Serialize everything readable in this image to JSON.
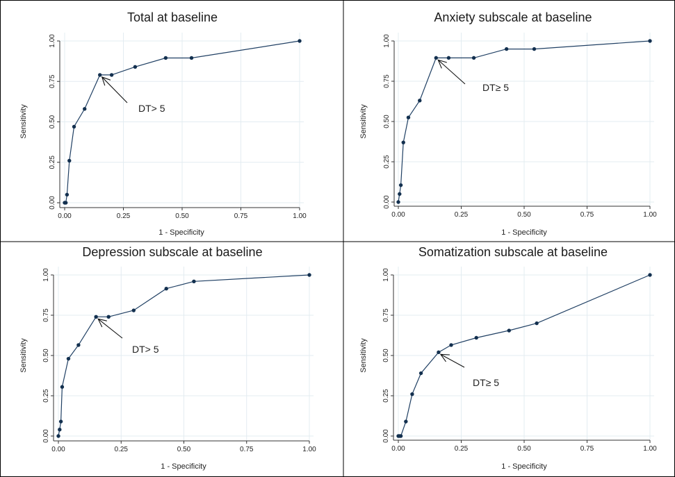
{
  "chart_data": [
    {
      "type": "line",
      "title": "Total at baseline",
      "xlabel": "1 - Specificity",
      "ylabel": "Sensitivity",
      "xlim": [
        0,
        1
      ],
      "ylim": [
        0,
        1
      ],
      "x_ticks": [
        "0.00",
        "0.25",
        "0.50",
        "0.75",
        "1.00"
      ],
      "y_ticks": [
        "0.00",
        "0.25",
        "0.50",
        "0.75",
        "1.00"
      ],
      "grid": true,
      "annotation": {
        "text": "DT> 5",
        "x": 0.15,
        "y": 0.79
      },
      "series": [
        {
          "x": [
            0.0,
            0.005,
            0.01,
            0.02,
            0.04,
            0.085,
            0.15,
            0.2,
            0.3,
            0.43,
            0.54,
            1.0
          ],
          "y": [
            0.0,
            0.0,
            0.05,
            0.26,
            0.47,
            0.58,
            0.79,
            0.79,
            0.84,
            0.895,
            0.895,
            1.0
          ]
        }
      ]
    },
    {
      "type": "line",
      "title": "Anxiety subscale at baseline",
      "xlabel": "1 - Specificity",
      "ylabel": "Sensitivity",
      "xlim": [
        0,
        1
      ],
      "ylim": [
        0,
        1
      ],
      "x_ticks": [
        "0.00",
        "0.25",
        "0.50",
        "0.75",
        "1.00"
      ],
      "y_ticks": [
        "0.00",
        "0.25",
        "0.50",
        "0.75",
        "1.00"
      ],
      "grid": true,
      "annotation": {
        "text": "DT≥ 5",
        "x": 0.15,
        "y": 0.895
      },
      "series": [
        {
          "x": [
            0.0,
            0.005,
            0.01,
            0.02,
            0.04,
            0.085,
            0.15,
            0.2,
            0.3,
            0.43,
            0.54,
            1.0
          ],
          "y": [
            0.0,
            0.05,
            0.105,
            0.37,
            0.525,
            0.63,
            0.895,
            0.895,
            0.895,
            0.95,
            0.95,
            1.0
          ]
        }
      ]
    },
    {
      "type": "line",
      "title": "Depression subscale at baseline",
      "xlabel": "1 - Specificity",
      "ylabel": "Sensitivity",
      "xlim": [
        0,
        1
      ],
      "ylim": [
        0,
        1
      ],
      "x_ticks": [
        "0.00",
        "0.25",
        "0.50",
        "0.75",
        "1.00"
      ],
      "y_ticks": [
        "0.00",
        "0.25",
        "0.50",
        "0.75",
        "1.00"
      ],
      "grid": true,
      "annotation": {
        "text": "DT> 5",
        "x": 0.15,
        "y": 0.74
      },
      "series": [
        {
          "x": [
            0.0,
            0.005,
            0.01,
            0.015,
            0.04,
            0.08,
            0.15,
            0.2,
            0.3,
            0.43,
            0.54,
            1.0
          ],
          "y": [
            0.0,
            0.04,
            0.09,
            0.305,
            0.48,
            0.565,
            0.74,
            0.74,
            0.78,
            0.915,
            0.96,
            1.0
          ]
        }
      ]
    },
    {
      "type": "line",
      "title": "Somatization subscale at baseline",
      "xlabel": "1 - Specificity",
      "ylabel": "Sensitivity",
      "xlim": [
        0,
        1
      ],
      "ylim": [
        0,
        1
      ],
      "x_ticks": [
        "0.00",
        "0.25",
        "0.50",
        "0.75",
        "1.00"
      ],
      "y_ticks": [
        "0.00",
        "0.25",
        "0.50",
        "0.75",
        "1.00"
      ],
      "grid": true,
      "annotation": {
        "text": "DT≥ 5",
        "x": 0.16,
        "y": 0.52
      },
      "series": [
        {
          "x": [
            0.0,
            0.005,
            0.01,
            0.03,
            0.055,
            0.09,
            0.16,
            0.21,
            0.31,
            0.44,
            0.55,
            1.0
          ],
          "y": [
            0.0,
            0.0,
            0.0,
            0.09,
            0.26,
            0.39,
            0.52,
            0.565,
            0.61,
            0.655,
            0.7,
            1.0
          ]
        }
      ]
    }
  ],
  "colors": {
    "line": "#1f3f63",
    "marker": "#13304f",
    "grid": "#e3ecf1",
    "border": "#000000",
    "axis": "#333333"
  }
}
